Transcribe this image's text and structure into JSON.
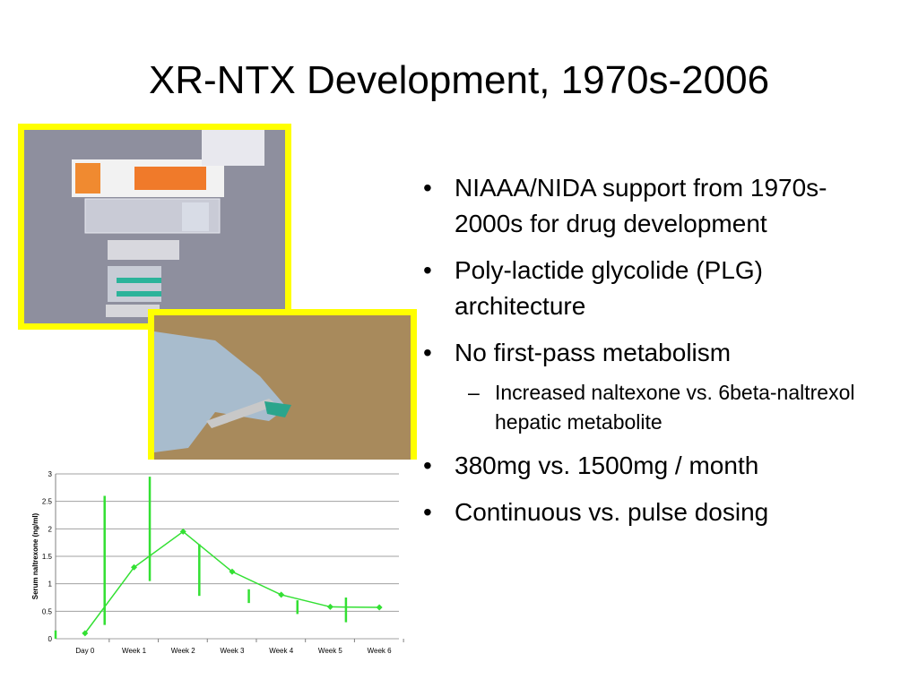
{
  "title": "XR-NTX Development, 1970s-2006",
  "bullets": [
    {
      "text": "NIAAA/NIDA support from 1970s-2000s for drug development"
    },
    {
      "text": "Poly-lactide glycolide (PLG) architecture"
    },
    {
      "text": "No first-pass metabolism",
      "sub": [
        "Increased naltexone vs. 6beta-naltrexol hepatic metabolite"
      ]
    },
    {
      "text": "380mg vs. 1500mg / month"
    },
    {
      "text": "Continuous vs. pulse dosing"
    }
  ],
  "chart_data": {
    "type": "line",
    "y_label": "Serum naltrexone (ng/ml)",
    "xlim": [
      -0.6,
      6.4
    ],
    "xticks": [
      {
        "value": 0,
        "label": "Day 0"
      },
      {
        "value": 1,
        "label": "Week 1"
      },
      {
        "value": 2,
        "label": "Week 2"
      },
      {
        "value": 3,
        "label": "Week 3"
      },
      {
        "value": 4,
        "label": "Week 4"
      },
      {
        "value": 5,
        "label": "Week 5"
      },
      {
        "value": 6,
        "label": "Week 6"
      }
    ],
    "ylim": [
      0,
      3
    ],
    "yticks": [
      0,
      0.5,
      1,
      1.5,
      2,
      2.5,
      3
    ],
    "grid": true,
    "color": "#33e033",
    "x": [
      0,
      1,
      2,
      3,
      4,
      5,
      6
    ],
    "values": [
      0.1,
      1.3,
      1.95,
      1.22,
      0.8,
      0.58,
      0.57
    ],
    "ranges": {
      "x": [
        -0.6,
        0.4,
        1.32,
        2.33,
        3.34,
        4.33,
        5.32
      ],
      "low": [
        0,
        0.25,
        1.05,
        0.78,
        0.65,
        0.45,
        0.3
      ],
      "high": [
        0.15,
        2.6,
        2.95,
        1.72,
        0.9,
        0.7,
        0.75
      ]
    }
  }
}
